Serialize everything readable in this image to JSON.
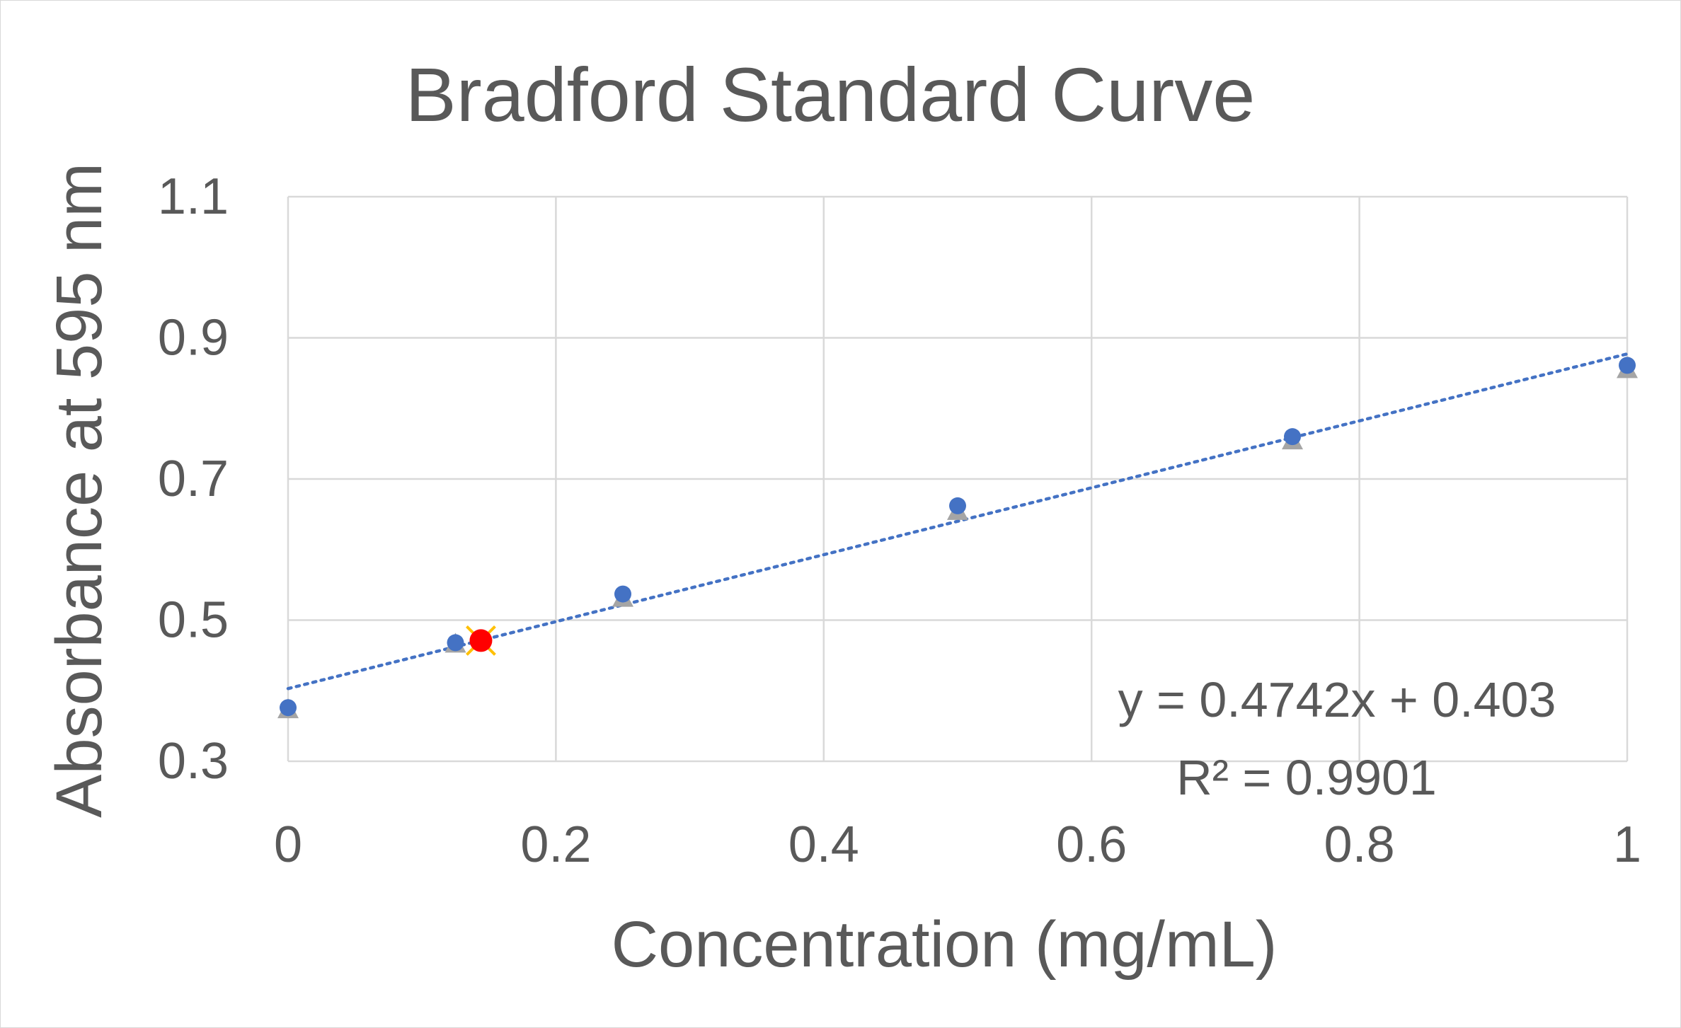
{
  "chart_data": {
    "type": "scatter",
    "title": "Bradford Standard Curve",
    "xlabel": "Concentration (mg/mL)",
    "ylabel": "Absorbance at 595 nm",
    "xlim": [
      0,
      1
    ],
    "ylim": [
      0.3,
      1.1
    ],
    "xticks": [
      "0",
      "0.2",
      "0.4",
      "0.6",
      "0.8",
      "1"
    ],
    "yticks": [
      "0.3",
      "0.5",
      "0.7",
      "0.9",
      "1.1"
    ],
    "grid": true,
    "legend": "none",
    "series": [
      {
        "marker": "triangle",
        "color": "#a5a5a5",
        "x": [
          0,
          0.125,
          0.25,
          0.5,
          0.75,
          1
        ],
        "y": [
          0.374,
          0.467,
          0.532,
          0.655,
          0.755,
          0.856
        ]
      },
      {
        "marker": "circle",
        "color": "#4472c4",
        "x": [
          0,
          0.125,
          0.25,
          0.5,
          0.75,
          1
        ],
        "y": [
          0.376,
          0.468,
          0.537,
          0.662,
          0.76,
          0.861
        ]
      },
      {
        "marker": "circle-x",
        "color": "#ff0000",
        "x": [
          0.144
        ],
        "y": [
          0.471
        ]
      }
    ],
    "trendline": {
      "type": "linear",
      "style": "dotted",
      "color": "#4472c4",
      "slope": 0.4742,
      "intercept": 0.403,
      "equation": "y = 0.4742x + 0.403",
      "r_squared": "R² = 0.9901"
    }
  }
}
